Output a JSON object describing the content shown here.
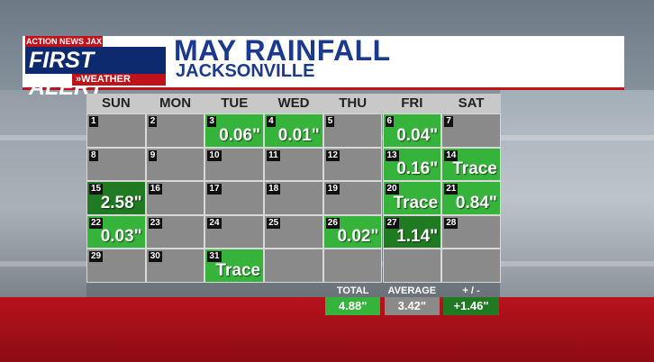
{
  "colors": {
    "header_blue": "#1b3a8f",
    "accent_red": "#c0121b",
    "rain_green": "#36b33a",
    "rain_dark_green": "#1f7a22",
    "dry_gray": "#8a8a8a"
  },
  "logo": {
    "top": "ACTION NEWS JAX",
    "first": "FIRST",
    "alert": "ALERT",
    "sub": "»WEATHER"
  },
  "header": {
    "title": "MAY RAINFALL",
    "subtitle": "JACKSONVILLE"
  },
  "days_of_week": [
    "SUN",
    "MON",
    "TUE",
    "WED",
    "THU",
    "FRI",
    "SAT"
  ],
  "cells": [
    {
      "day": "1",
      "amount": ""
    },
    {
      "day": "2",
      "amount": ""
    },
    {
      "day": "3",
      "amount": "0.06\""
    },
    {
      "day": "4",
      "amount": "0.01\""
    },
    {
      "day": "5",
      "amount": ""
    },
    {
      "day": "6",
      "amount": "0.04\""
    },
    {
      "day": "7",
      "amount": ""
    },
    {
      "day": "8",
      "amount": ""
    },
    {
      "day": "9",
      "amount": ""
    },
    {
      "day": "10",
      "amount": ""
    },
    {
      "day": "11",
      "amount": ""
    },
    {
      "day": "12",
      "amount": ""
    },
    {
      "day": "13",
      "amount": "0.16\""
    },
    {
      "day": "14",
      "amount": "Trace"
    },
    {
      "day": "15",
      "amount": "2.58\""
    },
    {
      "day": "16",
      "amount": ""
    },
    {
      "day": "17",
      "amount": ""
    },
    {
      "day": "18",
      "amount": ""
    },
    {
      "day": "19",
      "amount": ""
    },
    {
      "day": "20",
      "amount": "Trace"
    },
    {
      "day": "21",
      "amount": "0.84\""
    },
    {
      "day": "22",
      "amount": "0.03\""
    },
    {
      "day": "23",
      "amount": ""
    },
    {
      "day": "24",
      "amount": ""
    },
    {
      "day": "25",
      "amount": ""
    },
    {
      "day": "26",
      "amount": "0.02\""
    },
    {
      "day": "27",
      "amount": "1.14\""
    },
    {
      "day": "28",
      "amount": ""
    },
    {
      "day": "29",
      "amount": ""
    },
    {
      "day": "30",
      "amount": ""
    },
    {
      "day": "31",
      "amount": "Trace"
    },
    {
      "day": "",
      "amount": ""
    },
    {
      "day": "",
      "amount": ""
    },
    {
      "day": "",
      "amount": ""
    },
    {
      "day": "",
      "amount": ""
    }
  ],
  "summary": {
    "total_label": "TOTAL",
    "total_value": "4.88\"",
    "average_label": "AVERAGE",
    "average_value": "3.42\"",
    "diff_label": "+ / -",
    "diff_value": "+1.46\""
  }
}
